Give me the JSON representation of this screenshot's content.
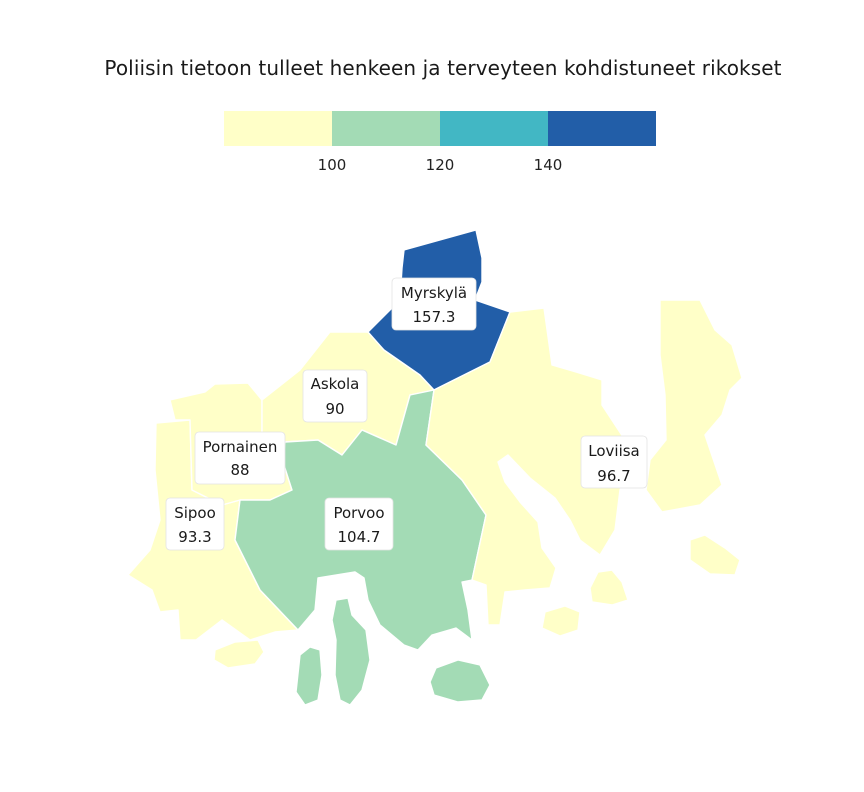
{
  "title": "Poliisin tietoon tulleet henkeen ja terveyteen kohdistuneet rikokset",
  "legend": {
    "breaks": [
      "100",
      "120",
      "140"
    ],
    "colors": [
      "#ffffc8",
      "#a3dbb5",
      "#42b7c4",
      "#225ea8"
    ]
  },
  "municipalities": [
    {
      "name": "Myrskylä",
      "value": "157.3",
      "color": "#225ea8"
    },
    {
      "name": "Askola",
      "value": "90",
      "color": "#ffffc8"
    },
    {
      "name": "Pornainen",
      "value": "88",
      "color": "#ffffc8"
    },
    {
      "name": "Sipoo",
      "value": "93.3",
      "color": "#ffffc8"
    },
    {
      "name": "Porvoo",
      "value": "104.7",
      "color": "#a3dbb5"
    },
    {
      "name": "Loviisa",
      "value": "96.7",
      "color": "#ffffc8"
    }
  ]
}
